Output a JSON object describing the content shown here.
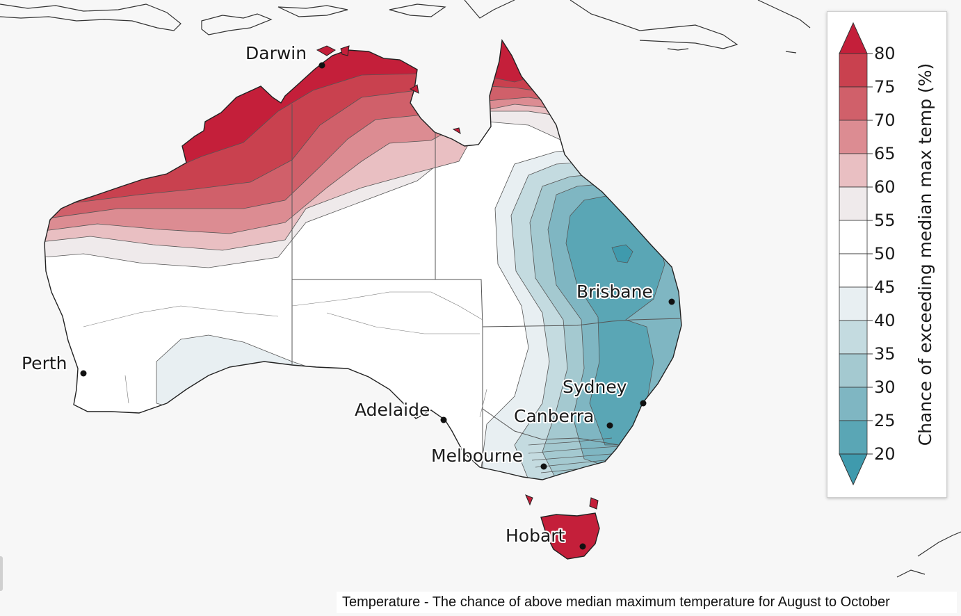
{
  "cities": [
    {
      "key": "darwin",
      "label": "Darwin"
    },
    {
      "key": "perth",
      "label": "Perth"
    },
    {
      "key": "adelaide",
      "label": "Adelaide"
    },
    {
      "key": "melbourne",
      "label": "Melbourne"
    },
    {
      "key": "canberra",
      "label": "Canberra"
    },
    {
      "key": "sydney",
      "label": "Sydney"
    },
    {
      "key": "brisbane",
      "label": "Brisbane"
    },
    {
      "key": "hobart",
      "label": "Hobart"
    }
  ],
  "legend": {
    "title": "Chance of exceeding median max temp (%)",
    "ticks": [
      "80",
      "75",
      "70",
      "65",
      "60",
      "55",
      "50",
      "45",
      "40",
      "35",
      "30",
      "25",
      "20"
    ],
    "colors": [
      "#c41f3a",
      "#c9414f",
      "#d0606a",
      "#dc8c92",
      "#e9bfc2",
      "#efeaeb",
      "#ffffff",
      "#ffffff",
      "#e8eff2",
      "#c4dbe0",
      "#a4c9d0",
      "#7fb6c2",
      "#5aa6b5",
      "#3f9aad"
    ]
  },
  "caption": "Temperature - The chance of above median maximum temperature for August to October"
}
